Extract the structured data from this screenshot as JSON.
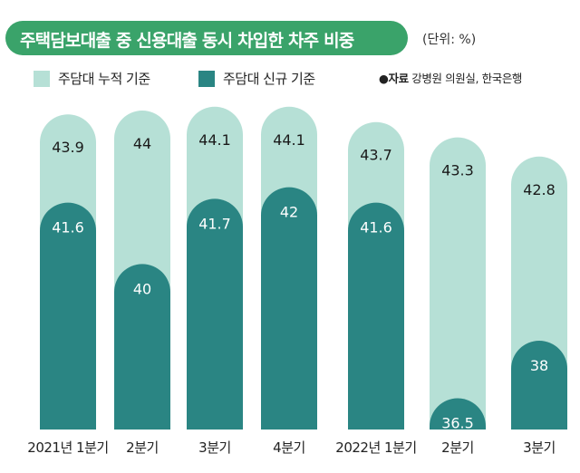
{
  "header": {
    "title": "주택담보대출 중 신용대출 동시 차입한 차주 비중",
    "unit": "(단위: %)"
  },
  "legend": {
    "items": [
      {
        "label": "주담대 누적 기준",
        "color": "#b6e0d6"
      },
      {
        "label": "주담대 신규 기준",
        "color": "#2a8583"
      }
    ]
  },
  "source": {
    "prefix": "●자료",
    "text": "강병원 의원실, 한국은행"
  },
  "colors": {
    "title_bg": "#3aa36a",
    "cumulative": "#b6e0d6",
    "new": "#2a8583"
  },
  "chart_data": {
    "type": "bar",
    "title": "주택담보대출 중 신용대출 동시 차입한 차주 비중",
    "categories": [
      "2021년 1분기",
      "2분기",
      "3분기",
      "4분기",
      "2022년 1분기",
      "2분기",
      "3분기"
    ],
    "series": [
      {
        "name": "주담대 누적 기준",
        "values": [
          43.9,
          44,
          44.1,
          44.1,
          43.7,
          43.3,
          42.8
        ]
      },
      {
        "name": "주담대 신규 기준",
        "values": [
          41.6,
          40,
          41.7,
          42,
          41.6,
          36.5,
          38
        ]
      }
    ],
    "value_labels": {
      "cumulative": [
        "43.9",
        "44",
        "44.1",
        "44.1",
        "43.7",
        "43.3",
        "42.8"
      ],
      "new": [
        "41.6",
        "40",
        "41.7",
        "42",
        "41.6",
        "36.5",
        "38"
      ]
    },
    "overlap": true,
    "legend_position": "top-left"
  }
}
